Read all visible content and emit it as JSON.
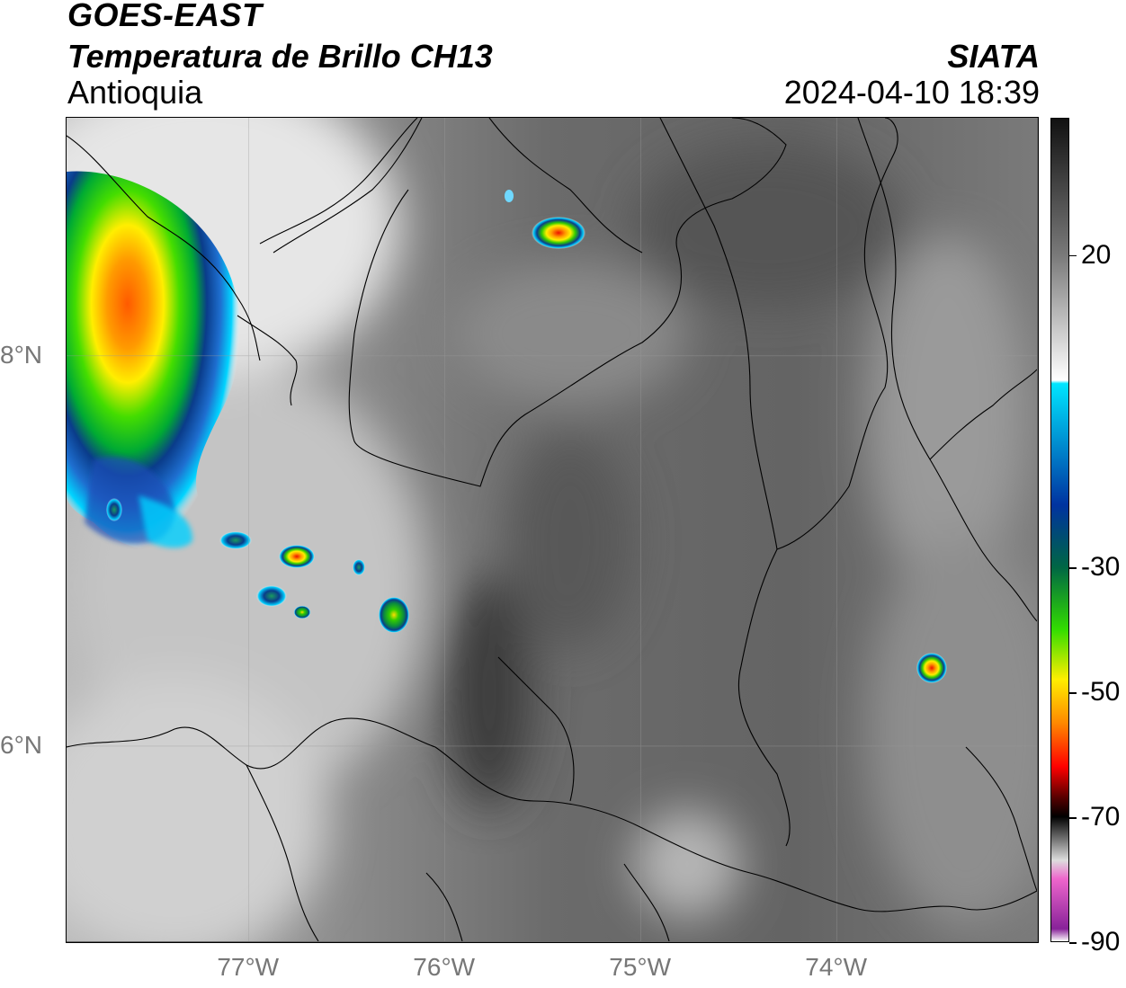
{
  "header": {
    "satellite": "GOES-EAST",
    "product": "Temperatura de Brillo CH13",
    "region": "Antioquia",
    "organization": "SIATA",
    "timestamp": "2024-04-10 18:39"
  },
  "map": {
    "lon_range": [
      -77.93,
      -72.98
    ],
    "lat_range": [
      5.0,
      9.22
    ],
    "x_ticks": [
      {
        "lon": -77,
        "label": "77°W"
      },
      {
        "lon": -76,
        "label": "76°W"
      },
      {
        "lon": -75,
        "label": "75°W"
      },
      {
        "lon": -74,
        "label": "74°W"
      }
    ],
    "y_ticks": [
      {
        "lat": 8,
        "label": "8°N"
      },
      {
        "lat": 6,
        "label": "6°N"
      }
    ],
    "gridlines": true,
    "storm_cells": [
      {
        "lon": -77.6,
        "lat": 8.15,
        "rx": 0.75,
        "ry": 0.8,
        "min_temp": -60
      },
      {
        "lon": -75.42,
        "lat": 8.85,
        "rx": 0.12,
        "ry": 0.08,
        "min_temp": -45
      },
      {
        "lon": -76.8,
        "lat": 7.0,
        "rx": 0.1,
        "ry": 0.05,
        "min_temp": -60
      },
      {
        "lon": -76.25,
        "lat": 6.7,
        "rx": 0.07,
        "ry": 0.06,
        "min_temp": -40
      },
      {
        "lon": -73.55,
        "lat": 6.42,
        "rx": 0.06,
        "ry": 0.06,
        "min_temp": -55
      }
    ]
  },
  "colorbar": {
    "label_values": [
      20,
      -30,
      -50,
      -70,
      -90
    ],
    "vmin": -90,
    "vmax": 42,
    "stops": [
      {
        "t": 42,
        "color": "#111111"
      },
      {
        "t": 20,
        "color": "#7a7a7a"
      },
      {
        "t": 0,
        "color": "#ffffff"
      },
      {
        "t": -0.5,
        "color": "#00e5ff"
      },
      {
        "t": -20,
        "color": "#0033a0"
      },
      {
        "t": -30,
        "color": "#006644"
      },
      {
        "t": -40,
        "color": "#33dd00"
      },
      {
        "t": -48,
        "color": "#ffee00"
      },
      {
        "t": -55,
        "color": "#ff8800"
      },
      {
        "t": -62,
        "color": "#ff0000"
      },
      {
        "t": -67,
        "color": "#550000"
      },
      {
        "t": -70,
        "color": "#000000"
      },
      {
        "t": -77,
        "color": "#dddddd"
      },
      {
        "t": -80,
        "color": "#ee66cc"
      },
      {
        "t": -88,
        "color": "#882299"
      },
      {
        "t": -90,
        "color": "#ffffff"
      }
    ]
  }
}
